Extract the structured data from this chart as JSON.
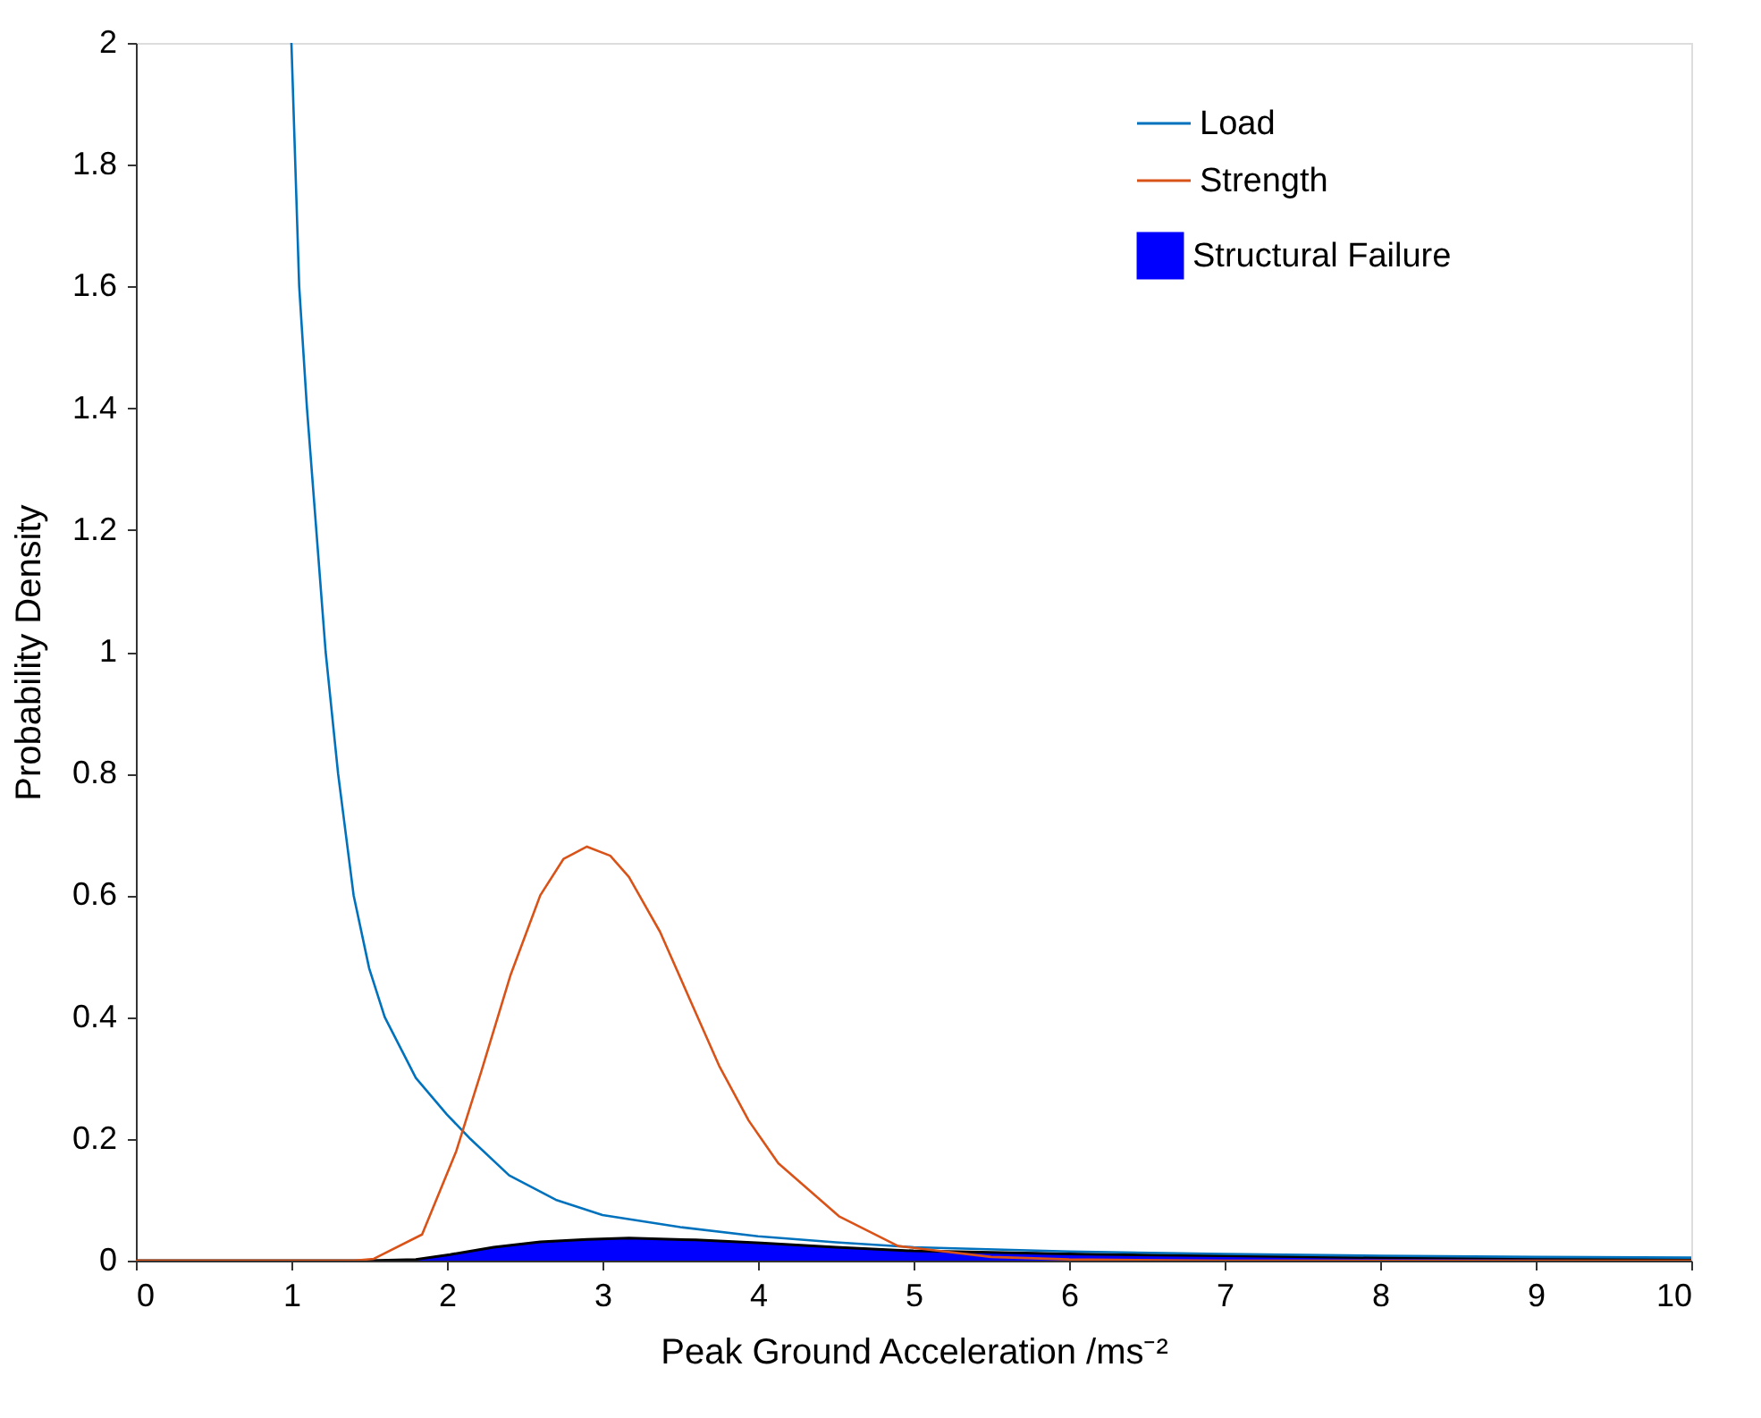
{
  "chart_data": {
    "type": "line",
    "xlabel": "Peak Ground Acceleration /ms⁻²",
    "ylabel": "Probability Density",
    "xlim": [
      0,
      10
    ],
    "ylim": [
      0,
      2
    ],
    "xticks": [
      0,
      1,
      2,
      3,
      4,
      5,
      6,
      7,
      8,
      9,
      10
    ],
    "yticks": [
      0,
      0.2,
      0.4,
      0.6,
      0.8,
      1,
      1.2,
      1.4,
      1.6,
      1.8,
      2
    ],
    "grid": false,
    "legend": "top right",
    "line_style": "solid",
    "marker": "none",
    "series": [
      {
        "name": "Load",
        "color": "#0072bd",
        "type": "line",
        "x": [
          1.0,
          1.05,
          1.1,
          1.22,
          1.3,
          1.4,
          1.5,
          1.6,
          1.8,
          2.0,
          2.15,
          2.4,
          2.7,
          3.0,
          3.5,
          4.0,
          4.5,
          5.0,
          6.0,
          7.0,
          8.0,
          9.0,
          10.0
        ],
        "values": [
          2.0,
          1.6,
          1.4,
          1.0,
          0.8,
          0.6,
          0.48,
          0.4,
          0.3,
          0.24,
          0.2,
          0.14,
          0.1,
          0.075,
          0.055,
          0.04,
          0.03,
          0.022,
          0.015,
          0.011,
          0.008,
          0.006,
          0.005
        ]
      },
      {
        "name": "Strength",
        "color": "#d95319",
        "type": "line",
        "x": [
          0,
          1.0,
          1.4,
          1.53,
          1.84,
          2.06,
          2.22,
          2.41,
          2.6,
          2.75,
          2.9,
          3.05,
          3.17,
          3.37,
          3.56,
          3.75,
          3.94,
          4.13,
          4.52,
          4.9,
          5.5,
          6.0,
          7.0,
          8.0,
          10.0
        ],
        "values": [
          0,
          0,
          0,
          0.003,
          0.043,
          0.18,
          0.31,
          0.47,
          0.6,
          0.66,
          0.68,
          0.665,
          0.63,
          0.54,
          0.43,
          0.32,
          0.23,
          0.16,
          0.073,
          0.024,
          0.006,
          0.002,
          0,
          0,
          0
        ]
      },
      {
        "name": "Structural Failure",
        "color": "#0000ff",
        "type": "area",
        "x": [
          0,
          1.0,
          1.5,
          1.8,
          2.02,
          2.3,
          2.6,
          2.9,
          3.17,
          3.6,
          4.02,
          4.5,
          5.0,
          6.0,
          7.0,
          8.0,
          9.0,
          10.0
        ],
        "values": [
          0,
          0,
          0,
          0.002,
          0.01,
          0.022,
          0.031,
          0.035,
          0.037,
          0.034,
          0.029,
          0.022,
          0.016,
          0.011,
          0.008,
          0.005,
          0.004,
          0.003
        ]
      }
    ]
  }
}
